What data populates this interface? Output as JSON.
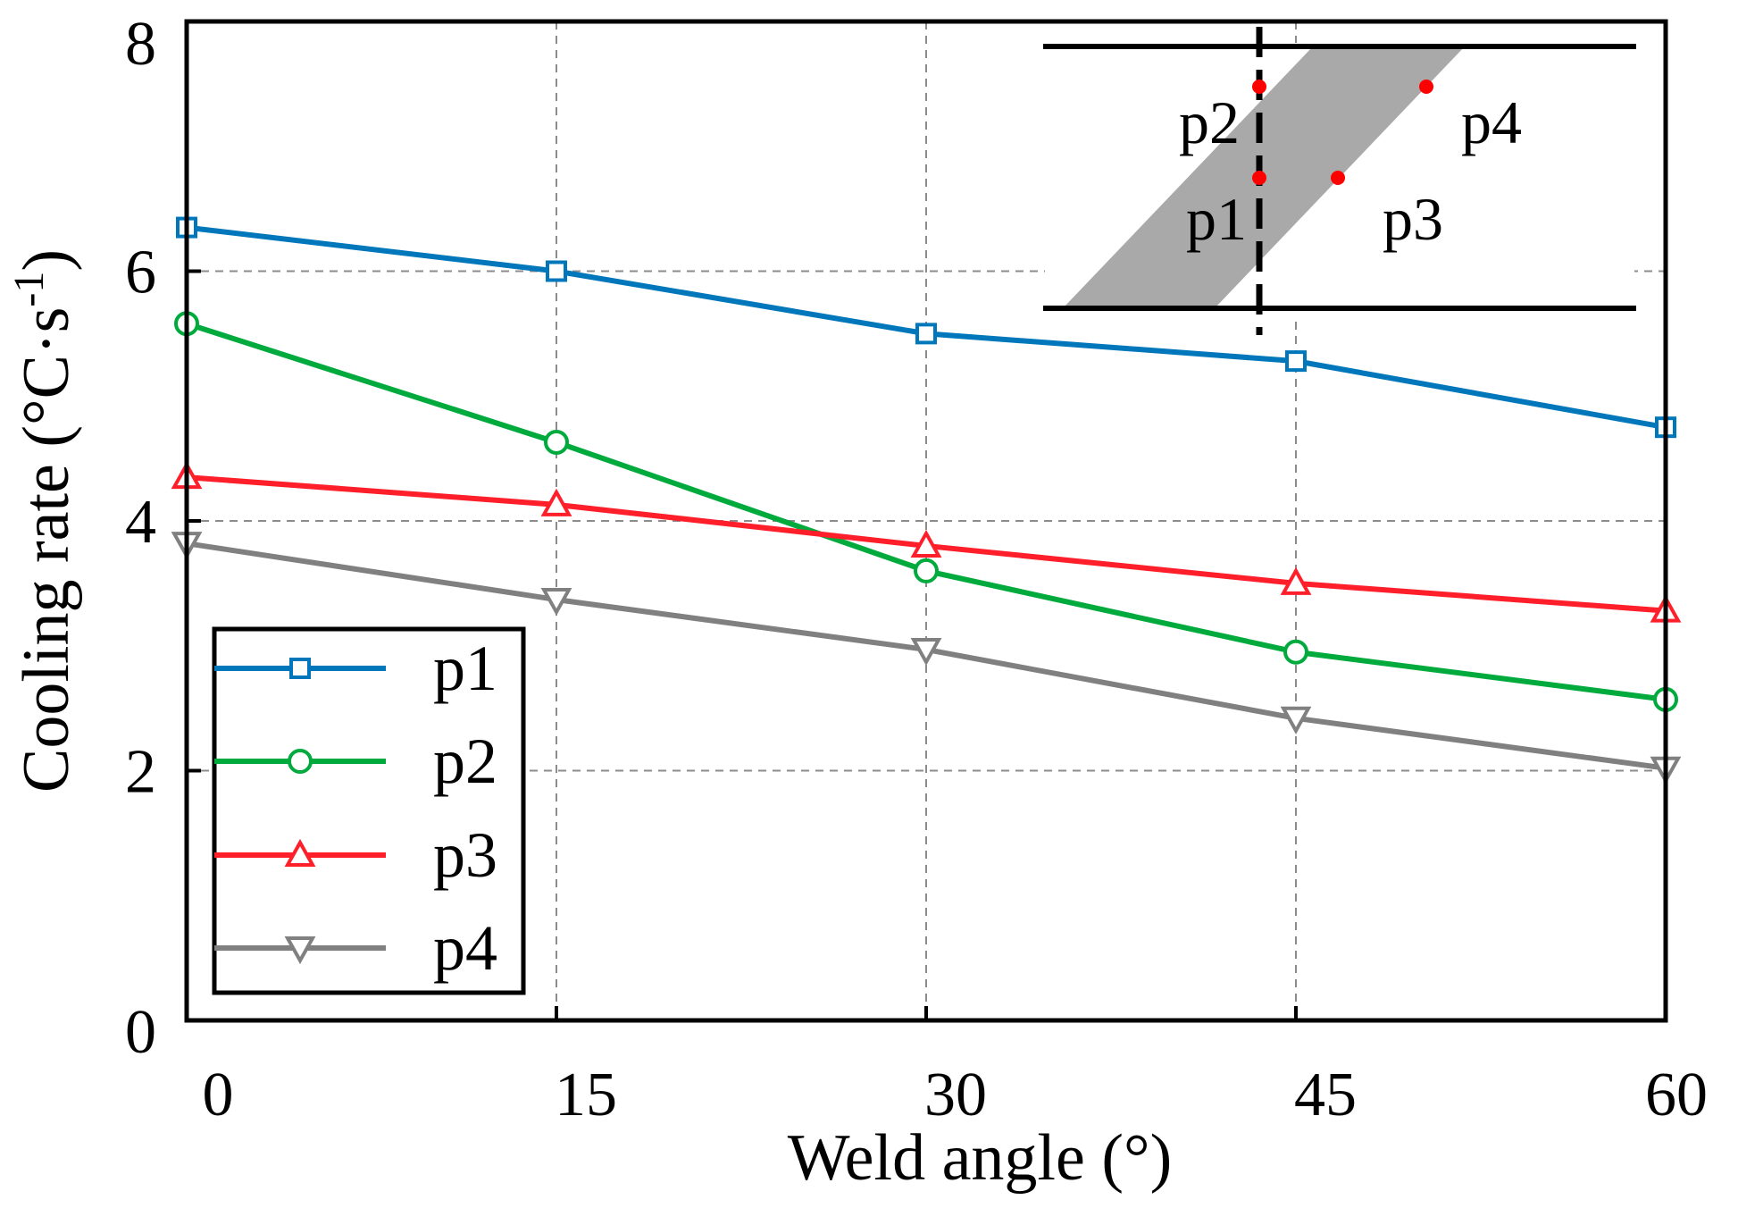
{
  "chart_data": {
    "type": "line",
    "title": "",
    "xlabel": "Weld angle (°)",
    "ylabel_main": "Cooling rate (°C·s",
    "ylabel_sup": "-1",
    "ylabel_close": ")",
    "x": [
      0,
      15,
      30,
      45,
      60
    ],
    "xlim": [
      0,
      60
    ],
    "ylim": [
      0,
      8
    ],
    "xticks": [
      0,
      15,
      30,
      45,
      60
    ],
    "xtick_labels": [
      "0",
      "15",
      "30",
      "45",
      "60"
    ],
    "yticks": [
      0,
      2,
      4,
      6,
      8
    ],
    "ytick_labels": [
      "0",
      "2",
      "4",
      "6",
      "8"
    ],
    "grid": true,
    "legend_position": "bottom-left",
    "series": [
      {
        "name": "p1",
        "marker": "square",
        "color": "#0077BB",
        "values": [
          6.35,
          6.0,
          5.5,
          5.28,
          4.75
        ]
      },
      {
        "name": "p2",
        "marker": "circle",
        "color": "#00AA3C",
        "values": [
          5.58,
          4.63,
          3.6,
          2.95,
          2.57
        ]
      },
      {
        "name": "p3",
        "marker": "triangle-up",
        "color": "#FF1F2A",
        "values": [
          4.35,
          4.13,
          3.8,
          3.5,
          3.28
        ]
      },
      {
        "name": "p4",
        "marker": "triangle-down",
        "color": "#808080",
        "values": [
          3.82,
          3.37,
          2.97,
          2.42,
          2.02
        ]
      }
    ],
    "inset": {
      "description_points": [
        "p1",
        "p2",
        "p3",
        "p4"
      ],
      "point_color": "#FF0000",
      "band_color": "#A9A9A9"
    }
  }
}
